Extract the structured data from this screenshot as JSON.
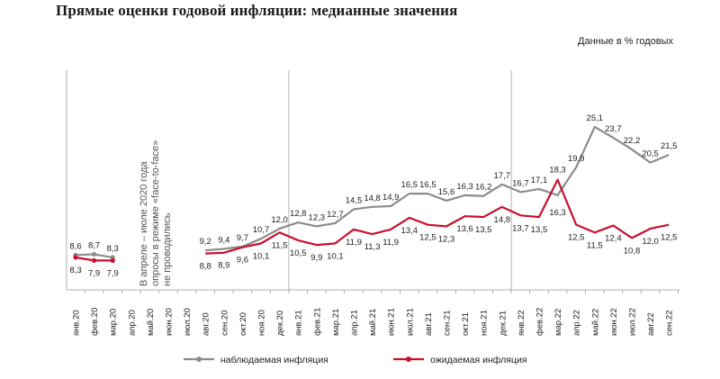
{
  "chart_data": {
    "type": "line",
    "title": "Прямые оценки годовой инфляции: медианные значения",
    "units_note": "Данные в % годовых",
    "annotation": [
      "В апреле – июле 2020 года",
      "опросы в режиме «face-to-face»",
      "не проводились"
    ],
    "categories": [
      "янв.20",
      "фев.20",
      "мар.20",
      "апр.20",
      "май.20",
      "июн.20",
      "июл.20",
      "авг.20",
      "сен.20",
      "окт.20",
      "ноя.20",
      "дек.20",
      "янв.21",
      "фев.21",
      "мар.21",
      "апр.21",
      "май.21",
      "июн.21",
      "июл.21",
      "авг.21",
      "сен.21",
      "окт.21",
      "ноя.21",
      "дек.21",
      "янв.22",
      "фев.22",
      "мар.22",
      "апр.22",
      "май.22",
      "июн.22",
      "июл.22",
      "авг.22",
      "сен.22"
    ],
    "ylim": [
      0,
      28
    ],
    "separators_after": [
      "дек.20",
      "дек.21"
    ],
    "series": [
      {
        "name": "наблюдаемая инфляция",
        "color": "#8c8c8c",
        "values": [
          8.6,
          8.7,
          8.3,
          null,
          null,
          null,
          null,
          9.2,
          9.4,
          9.7,
          10.7,
          12.0,
          12.8,
          12.3,
          12.7,
          14.5,
          14.8,
          14.9,
          16.5,
          16.5,
          15.6,
          16.3,
          16.2,
          17.7,
          16.7,
          17.1,
          16.3,
          19.9,
          25.1,
          23.7,
          22.2,
          20.5,
          21.5
        ],
        "labels": [
          "8,6",
          "8,7",
          "8,3",
          null,
          null,
          null,
          null,
          "9,2",
          "9,4",
          "9,7",
          "10,7",
          "12,0",
          "12,8",
          "12,3",
          "12,7",
          "14,5",
          "14,8",
          "14,9",
          "16,5",
          "16,5",
          "15,6",
          "16,3",
          "16,2",
          "17,7",
          "16,7",
          "17,1",
          "16,3",
          "19,9",
          "25,1",
          "23,7",
          "22,2",
          "20,5",
          "21,5"
        ]
      },
      {
        "name": "ожидаемая инфляция",
        "color": "#c8102e",
        "values": [
          8.3,
          7.9,
          7.9,
          null,
          null,
          null,
          null,
          8.8,
          8.9,
          9.6,
          10.1,
          11.5,
          10.5,
          9.9,
          10.1,
          11.9,
          11.3,
          11.9,
          13.4,
          12.5,
          12.3,
          13.6,
          13.5,
          14.8,
          13.7,
          13.5,
          18.3,
          12.5,
          11.5,
          12.4,
          10.8,
          12.0,
          12.5
        ],
        "labels": [
          "8,3",
          "7,9",
          "7,9",
          null,
          null,
          null,
          null,
          "8,8",
          "8,9",
          "9,6",
          "10,1",
          "11,5",
          "10,5",
          "9,9",
          "10,1",
          "11,9",
          "11,3",
          "11,9",
          "13,4",
          "12,5",
          "12,3",
          "13,6",
          "13,5",
          "14,8",
          "13,7",
          "13,5",
          "18,3",
          "12,5",
          "11,5",
          "12,4",
          "10,8",
          "12,0",
          "12,5"
        ]
      }
    ]
  }
}
